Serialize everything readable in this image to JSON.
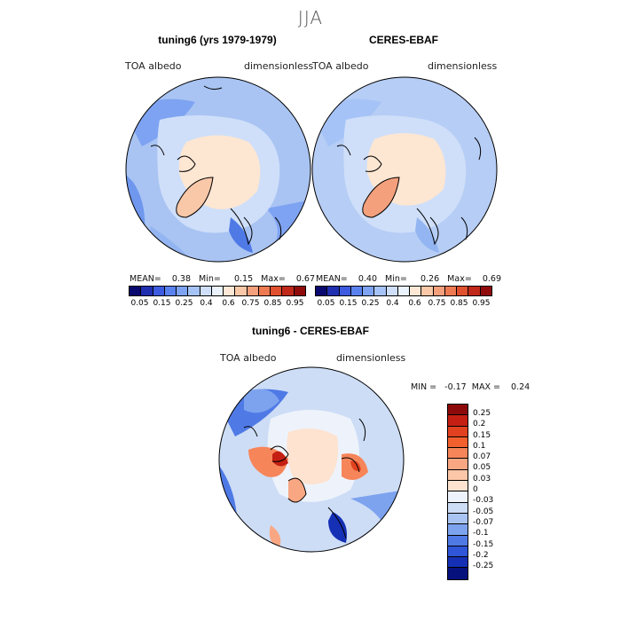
{
  "figure": {
    "title": "JJA"
  },
  "panels": [
    {
      "title": "tuning6 (yrs 1979-1979)",
      "left_label": "TOA albedo",
      "right_label": "dimensionless",
      "stats": "MEAN=    0.38   Min=     0.15   Max=    0.67"
    },
    {
      "title": "CERES-EBAF",
      "left_label": "TOA albedo",
      "right_label": "dimensionless",
      "stats": "MEAN=    0.40   Min=     0.26   Max=    0.69"
    }
  ],
  "abs_colorbar": {
    "ticks": [
      "0.05",
      "0.15",
      "0.25",
      "0.4",
      "0.6",
      "0.75",
      "0.85",
      "0.95"
    ],
    "colors": [
      "#08086e",
      "#1f2fb0",
      "#3d5be0",
      "#5a82ee",
      "#7ea3f2",
      "#a6c3f7",
      "#cfdff9",
      "#eaf2fb",
      "#fde8d6",
      "#f9c8a8",
      "#f4a07c",
      "#ee7a52",
      "#e0512f",
      "#c0281a",
      "#900c0c"
    ]
  },
  "diff_panel": {
    "title": "tuning6 - CERES-EBAF",
    "left_label": "TOA albedo",
    "right_label": "dimensionless",
    "minmax": "MIN =   -0.17  MAX =    0.24"
  },
  "diff_colorbar": {
    "ticks": [
      "0.25",
      "0.2",
      "0.15",
      "0.1",
      "0.07",
      "0.05",
      "0.03",
      "0",
      "-0.03",
      "-0.05",
      "-0.07",
      "-0.1",
      "-0.15",
      "-0.2",
      "-0.25"
    ],
    "colors": [
      "#8c0a0a",
      "#c41f12",
      "#e2411f",
      "#f2602e",
      "#f7855a",
      "#f9a783",
      "#fcc6a8",
      "#fde3d0",
      "#eef3fb",
      "#cdddf6",
      "#a9c4f3",
      "#7da3ef",
      "#4f7ae6",
      "#2f55d8",
      "#1530b5",
      "#06117e"
    ]
  },
  "map_colors": {
    "land_light": "#fde6d2",
    "blue_light": "#c5d8f6",
    "blue_mid": "#93b5f1",
    "blue_dark": "#5f8de9",
    "orange": "#f6b08a",
    "red": "#e25a35"
  }
}
